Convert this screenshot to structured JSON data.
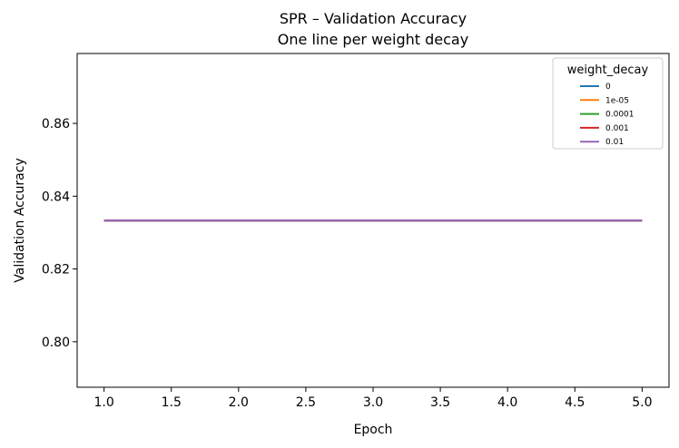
{
  "chart_data": {
    "type": "line",
    "title": "SPR – Validation Accuracy",
    "subtitle": "One line per weight decay",
    "xlabel": "Epoch",
    "ylabel": "Validation Accuracy",
    "x": [
      1,
      2,
      3,
      4,
      5
    ],
    "xlim": [
      0.8,
      5.2
    ],
    "ylim": [
      0.7875,
      0.8792
    ],
    "xticks": [
      1.0,
      1.5,
      2.0,
      2.5,
      3.0,
      3.5,
      4.0,
      4.5,
      5.0
    ],
    "xtick_labels": [
      "1.0",
      "1.5",
      "2.0",
      "2.5",
      "3.0",
      "3.5",
      "4.0",
      "4.5",
      "5.0"
    ],
    "yticks": [
      0.8,
      0.82,
      0.84,
      0.86
    ],
    "ytick_labels": [
      "0.80",
      "0.82",
      "0.84",
      "0.86"
    ],
    "grid": false,
    "legend": {
      "title": "weight_decay",
      "placement": "upper-right"
    },
    "series": [
      {
        "name": "0",
        "color": "#1f77b4",
        "values": [
          0.8333,
          0.8333,
          0.8333,
          0.8333,
          0.8333
        ]
      },
      {
        "name": "1e-05",
        "color": "#ff7f0e",
        "values": [
          0.8333,
          0.8333,
          0.8333,
          0.8333,
          0.8333
        ]
      },
      {
        "name": "0.0001",
        "color": "#2ca02c",
        "values": [
          0.8333,
          0.8333,
          0.8333,
          0.8333,
          0.8333
        ]
      },
      {
        "name": "0.001",
        "color": "#d62728",
        "values": [
          0.8333,
          0.8333,
          0.8333,
          0.8333,
          0.8333
        ]
      },
      {
        "name": "0.01",
        "color": "#9467bd",
        "values": [
          0.8333,
          0.8333,
          0.8333,
          0.8333,
          0.8333
        ]
      }
    ]
  }
}
